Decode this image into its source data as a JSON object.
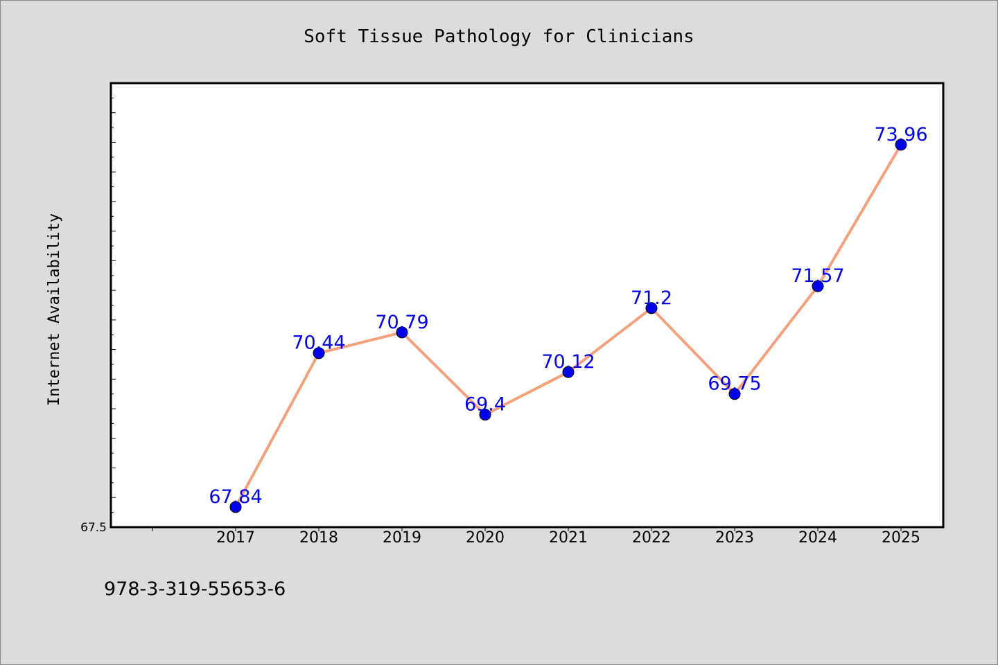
{
  "chart_data": {
    "type": "line",
    "title": "Soft Tissue Pathology for Clinicians",
    "xlabel": "",
    "ylabel": "Internet Availability",
    "categories": [
      "2017",
      "2018",
      "2019",
      "2020",
      "2021",
      "2022",
      "2023",
      "2024",
      "2025"
    ],
    "series": [
      {
        "values": [
          67.84,
          70.44,
          70.79,
          69.4,
          70.12,
          71.2,
          69.75,
          71.57,
          73.96
        ],
        "data_labels": [
          "67.84",
          "70.44",
          "70.79",
          "69.4",
          "70.12",
          "71.2",
          "69.75",
          "71.57",
          "73.96"
        ]
      }
    ],
    "ylim": [
      67.5,
      75.0
    ],
    "y_tick_labels": [
      "67.5"
    ],
    "grid": false,
    "legend": "none",
    "colors": {
      "line": "#f4a07c",
      "marker": "#0000ee",
      "label": "#0000ee",
      "background": "#dcdcdc",
      "plot_background": "#ffffff"
    }
  },
  "footer": {
    "identifier": "978-3-319-55653-6"
  }
}
